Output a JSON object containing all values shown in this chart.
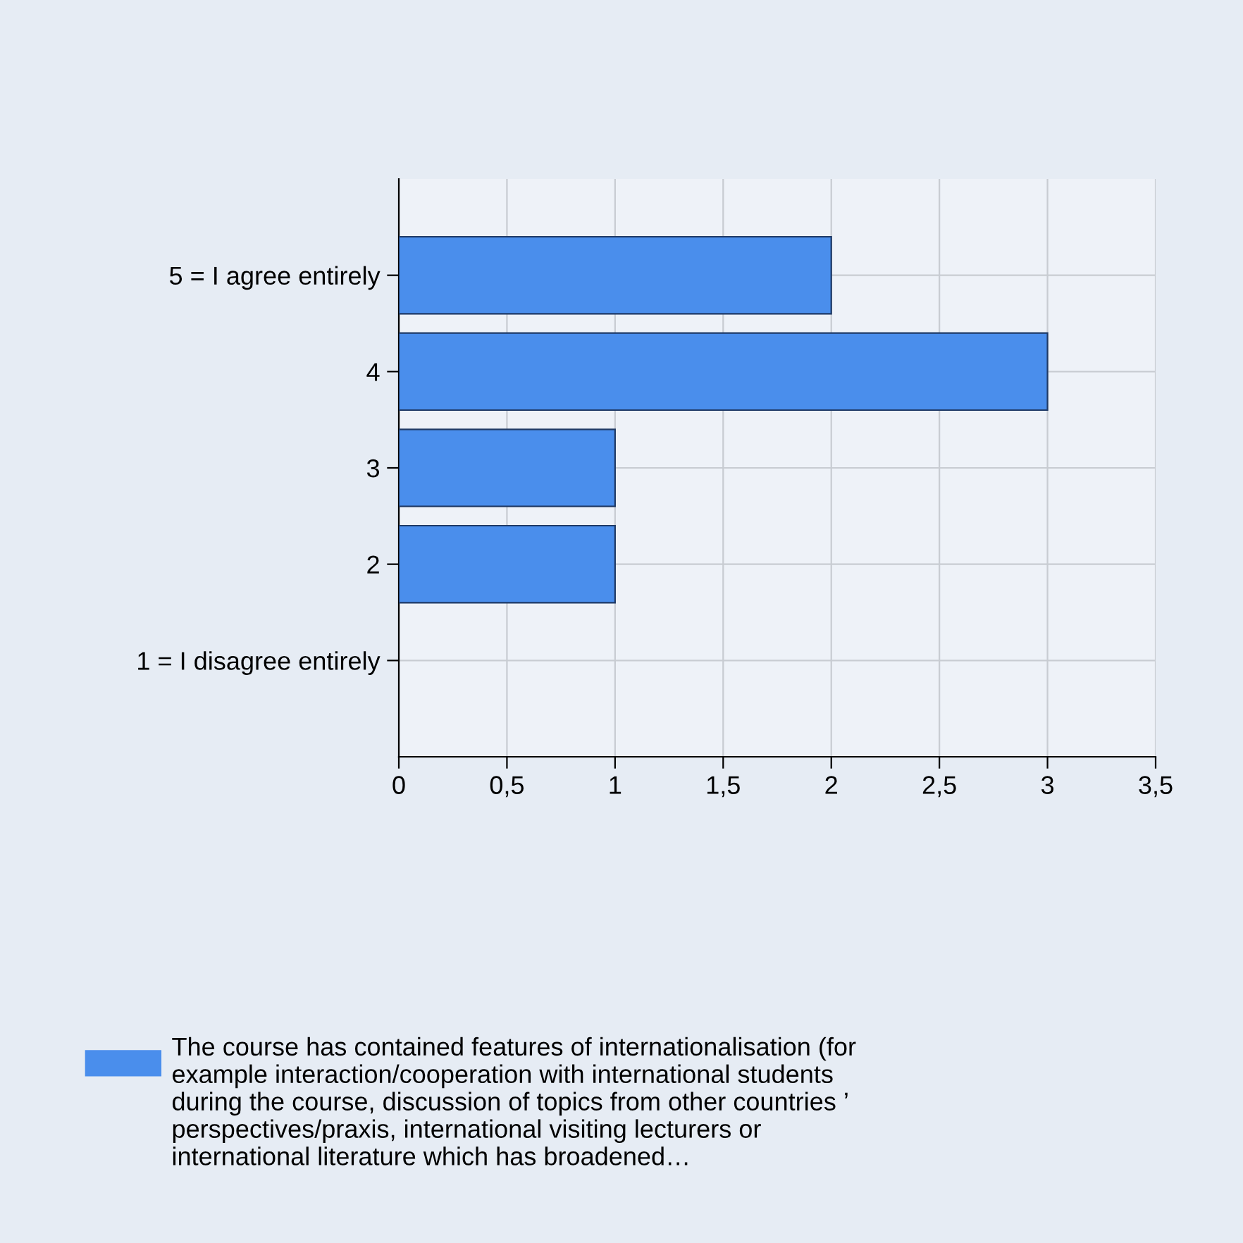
{
  "chart_data": {
    "type": "bar",
    "orientation": "horizontal",
    "categories": [
      "5 = I agree entirely",
      "4",
      "3",
      "2",
      "1 = I disagree entirely"
    ],
    "series": [
      {
        "name": "The course has contained features of internationalisation (for example interaction/cooperation with international students during the course, discussion of topics from other countries ’ perspectives/praxis, international visiting lecturers or international literature which has broadened…",
        "color": "#4a8eec",
        "values": [
          2,
          3,
          1,
          1,
          0
        ]
      }
    ],
    "xlim": [
      0,
      3.5
    ],
    "xticks": [
      0,
      {
        "value": 0.5,
        "label": "0,5"
      },
      1,
      {
        "value": 1.5,
        "label": "1,5"
      },
      2,
      {
        "value": 2.5,
        "label": "2,5"
      },
      3,
      {
        "value": 3.5,
        "label": "3,5"
      }
    ],
    "grid": true,
    "legend": "bottom left"
  }
}
